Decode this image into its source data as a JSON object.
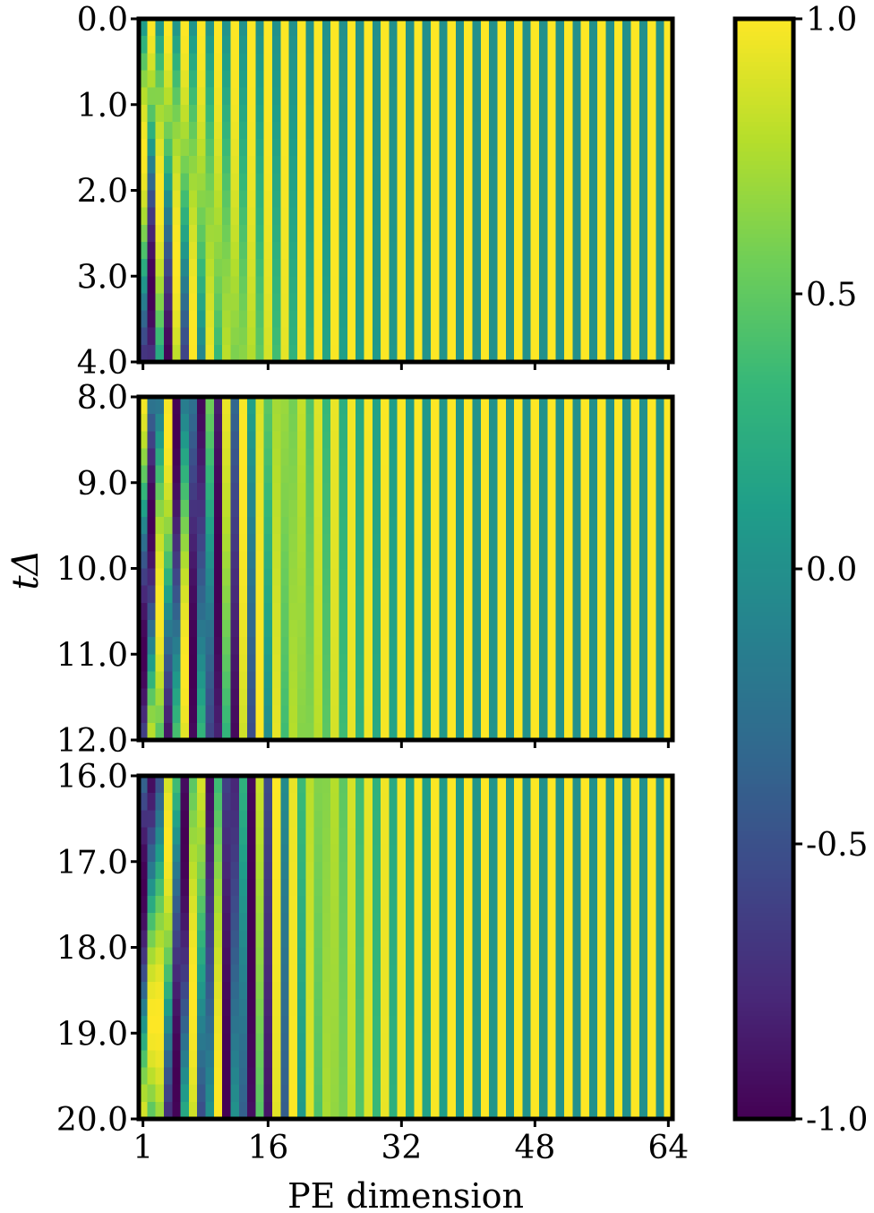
{
  "chart_data": {
    "type": "heatmap",
    "title": "",
    "xlabel": "PE dimension",
    "ylabel": "tΔ",
    "x": {
      "range": [
        1,
        64
      ],
      "ticks": [
        1,
        16,
        32,
        48,
        64
      ],
      "tick_labels": [
        "1",
        "16",
        "32",
        "48",
        "64"
      ]
    },
    "panels": [
      {
        "ylim": [
          0.0,
          4.0
        ],
        "yticks": [
          0.0,
          1.0,
          2.0,
          3.0,
          4.0
        ],
        "ytick_labels": [
          "0.0",
          "1.0",
          "2.0",
          "3.0",
          "4.0"
        ]
      },
      {
        "ylim": [
          8.0,
          12.0
        ],
        "yticks": [
          8.0,
          9.0,
          10.0,
          11.0,
          12.0
        ],
        "ytick_labels": [
          "8.0",
          "9.0",
          "10.0",
          "11.0",
          "12.0"
        ]
      },
      {
        "ylim": [
          16.0,
          20.0
        ],
        "yticks": [
          16.0,
          17.0,
          18.0,
          19.0,
          20.0
        ],
        "ytick_labels": [
          "16.0",
          "17.0",
          "18.0",
          "19.0",
          "20.0"
        ]
      }
    ],
    "value_model": "even PE dims: sin(t * 10000^(-(d-1)/64)); odd PE dims: cos(t * 10000^(-(d-2)/64)); rendered on a 20-row grid per panel",
    "colorbar": {
      "colormap": "viridis",
      "range": [
        -1.0,
        1.0
      ],
      "ticks": [
        1.0,
        0.5,
        0.0,
        -0.5,
        -1.0
      ],
      "tick_labels": [
        "1.0",
        "0.5",
        "0.0",
        "-0.5",
        "-1.0"
      ]
    },
    "grid": false,
    "legend": "none"
  },
  "colors": {
    "viridis": [
      "#440154",
      "#482878",
      "#3e4989",
      "#31688e",
      "#26828e",
      "#1f9e89",
      "#35b779",
      "#6ece58",
      "#b5de2b",
      "#fde725"
    ],
    "frame": "#000000"
  }
}
